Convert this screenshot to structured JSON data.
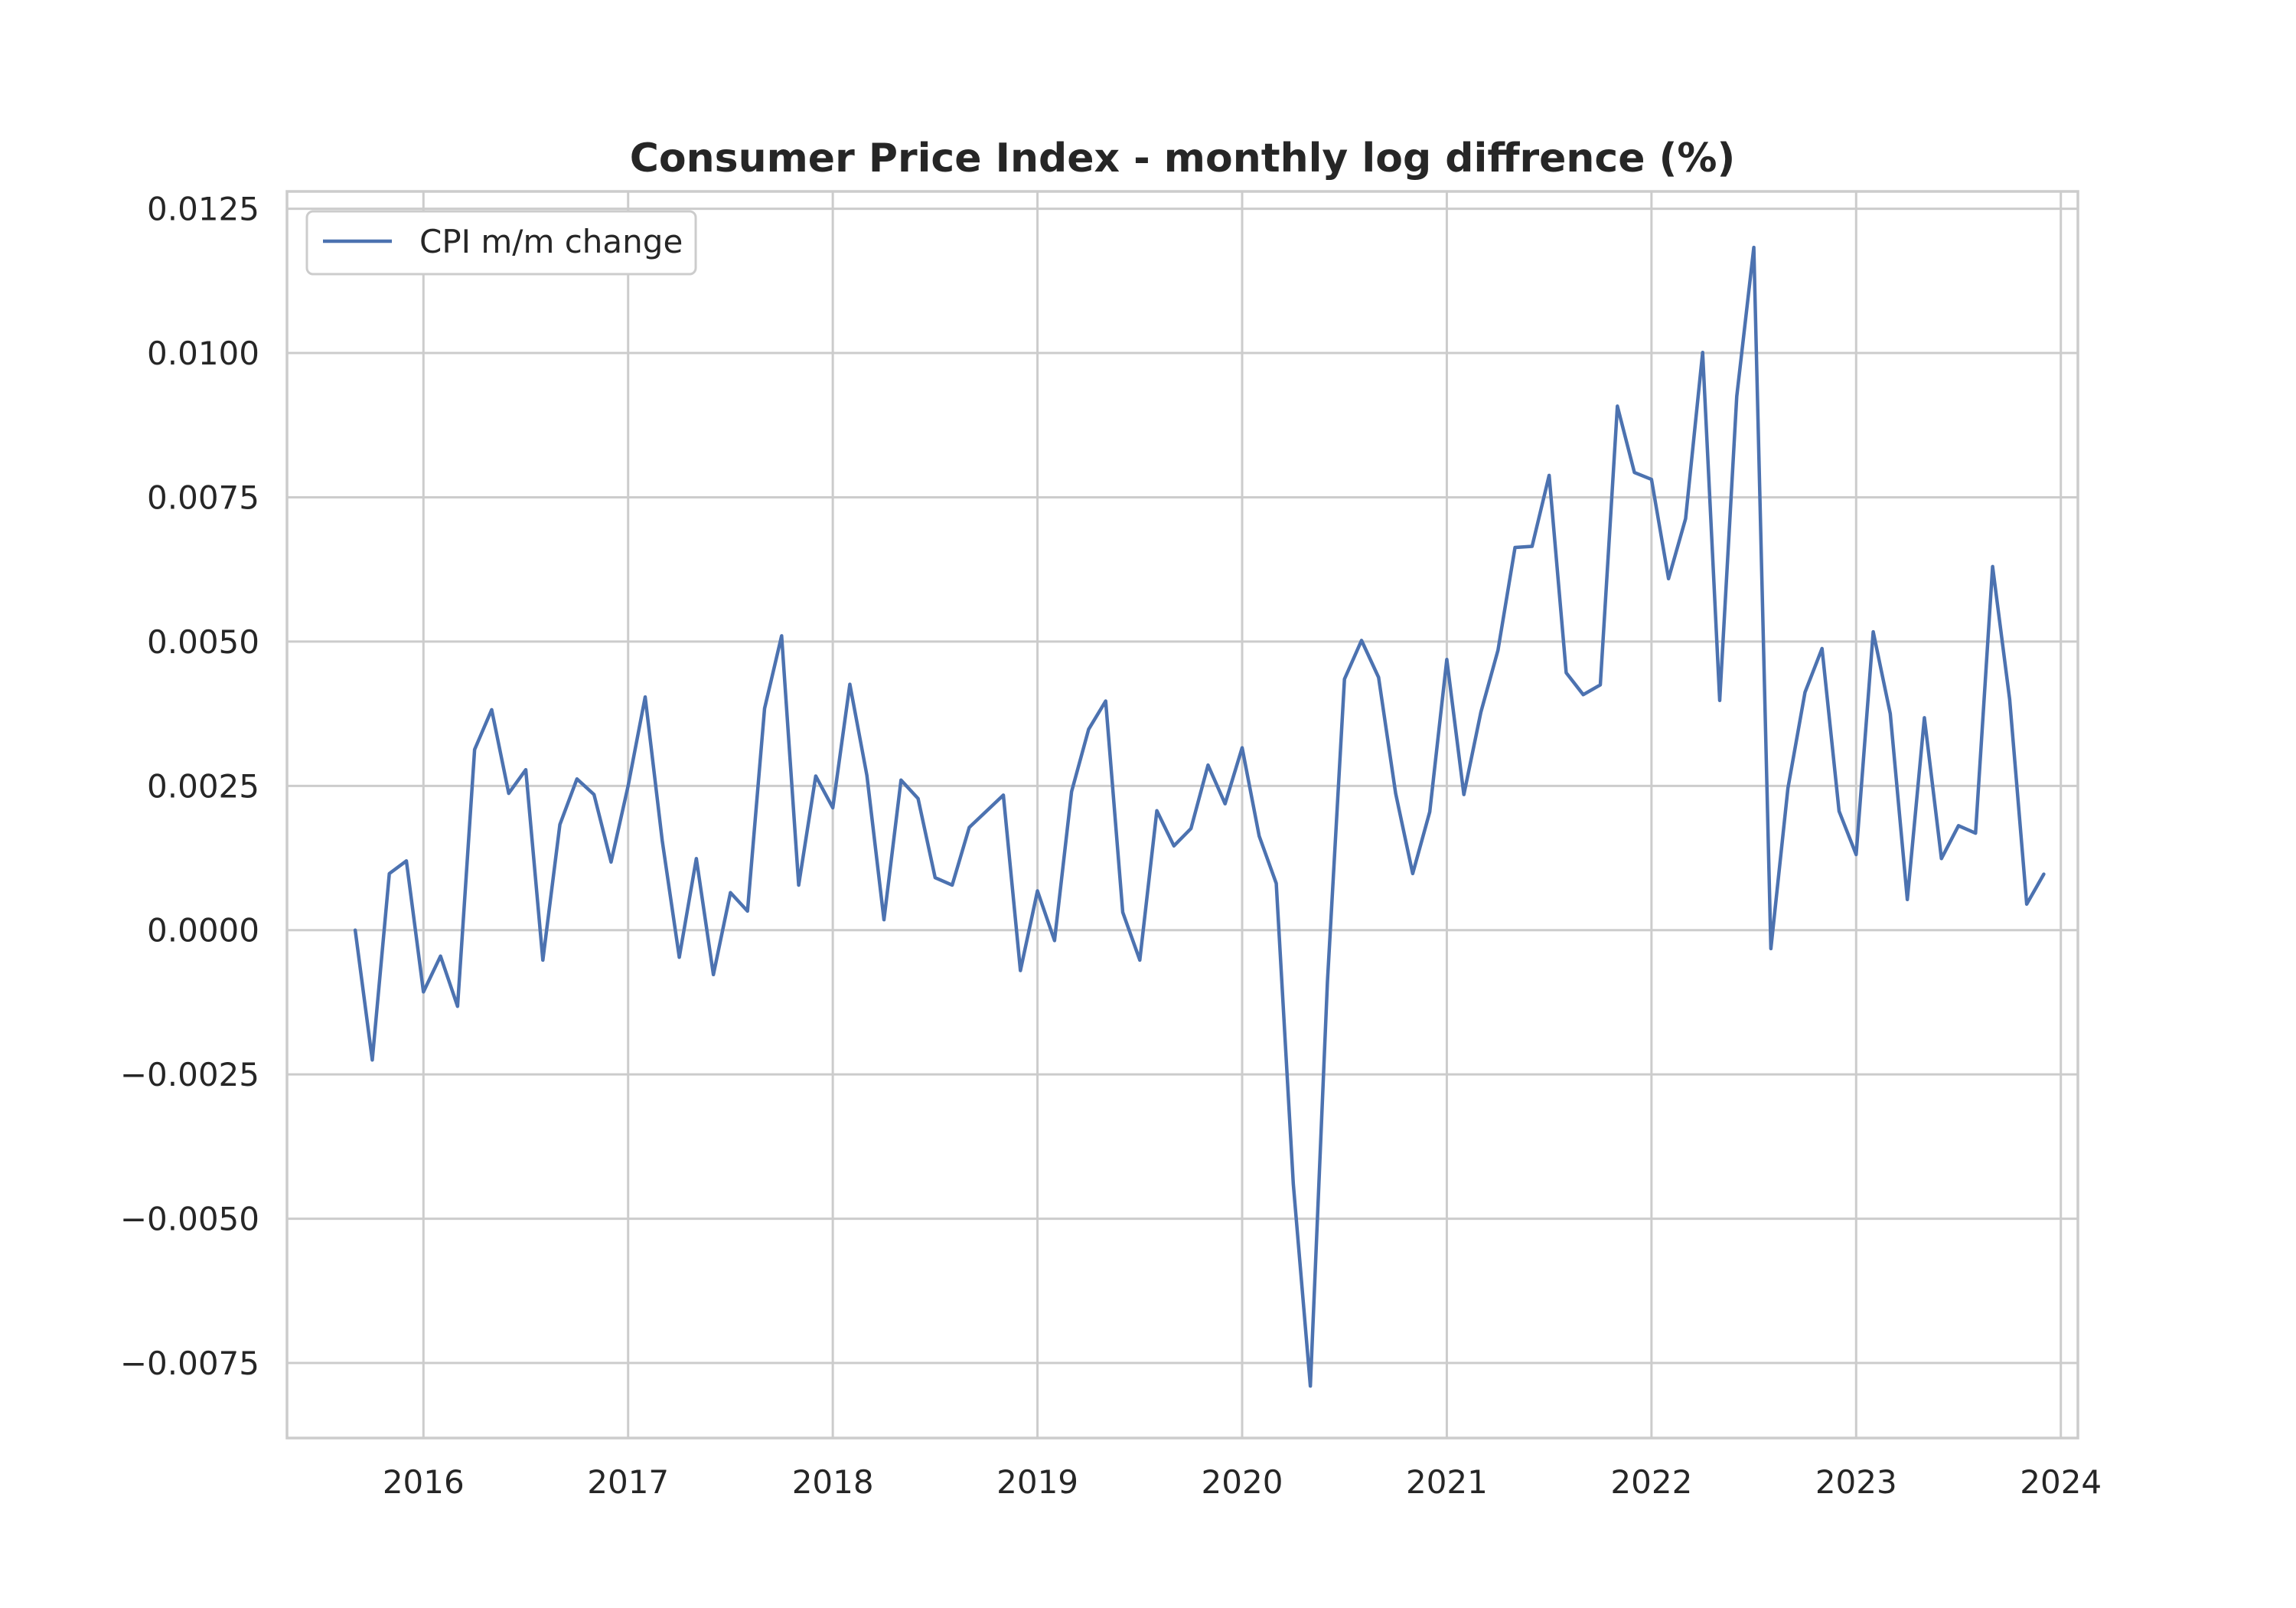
{
  "chart_data": {
    "type": "line",
    "title": "Consumer Price Index - monthly log diffrence (%)",
    "xlabel": "",
    "ylabel": "",
    "x_range": [
      "2015-05",
      "2024-02"
    ],
    "ylim": [
      -0.0088,
      0.0128
    ],
    "x_ticks": [
      {
        "date": "2016-01",
        "label": "2016"
      },
      {
        "date": "2017-01",
        "label": "2017"
      },
      {
        "date": "2018-01",
        "label": "2018"
      },
      {
        "date": "2019-01",
        "label": "2019"
      },
      {
        "date": "2020-01",
        "label": "2020"
      },
      {
        "date": "2021-01",
        "label": "2021"
      },
      {
        "date": "2022-01",
        "label": "2022"
      },
      {
        "date": "2023-01",
        "label": "2023"
      },
      {
        "date": "2024-01",
        "label": "2024"
      }
    ],
    "y_ticks": [
      {
        "value": 0.0125,
        "label": "0.0125"
      },
      {
        "value": 0.01,
        "label": "0.0100"
      },
      {
        "value": 0.0075,
        "label": "0.0075"
      },
      {
        "value": 0.005,
        "label": "0.0050"
      },
      {
        "value": 0.0025,
        "label": "0.0025"
      },
      {
        "value": 0.0,
        "label": "0.0000"
      },
      {
        "value": -0.0025,
        "label": "−0.0025"
      },
      {
        "value": -0.005,
        "label": "−0.0050"
      },
      {
        "value": -0.0075,
        "label": "−0.0075"
      }
    ],
    "grid": true,
    "legend": {
      "placement": "top-left",
      "entries": [
        "CPI m/m change"
      ]
    },
    "series": [
      {
        "name": "CPI m/m change",
        "color": "#4c72b0",
        "x": [
          "2015-09",
          "2015-10",
          "2015-11",
          "2015-12",
          "2016-01",
          "2016-02",
          "2016-03",
          "2016-04",
          "2016-05",
          "2016-06",
          "2016-07",
          "2016-08",
          "2016-09",
          "2016-10",
          "2016-11",
          "2016-12",
          "2017-01",
          "2017-02",
          "2017-03",
          "2017-04",
          "2017-05",
          "2017-06",
          "2017-07",
          "2017-08",
          "2017-09",
          "2017-10",
          "2017-11",
          "2017-12",
          "2018-01",
          "2018-02",
          "2018-03",
          "2018-04",
          "2018-05",
          "2018-06",
          "2018-07",
          "2018-08",
          "2018-09",
          "2018-10",
          "2018-11",
          "2018-12",
          "2019-01",
          "2019-02",
          "2019-03",
          "2019-04",
          "2019-05",
          "2019-06",
          "2019-07",
          "2019-08",
          "2019-09",
          "2019-10",
          "2019-11",
          "2019-12",
          "2020-01",
          "2020-02",
          "2020-03",
          "2020-04",
          "2020-05",
          "2020-06",
          "2020-07",
          "2020-08",
          "2020-09",
          "2020-10",
          "2020-11",
          "2020-12",
          "2021-01",
          "2021-02",
          "2021-03",
          "2021-04",
          "2021-05",
          "2021-06",
          "2021-07",
          "2021-08",
          "2021-09",
          "2021-10",
          "2021-11",
          "2021-12",
          "2022-01",
          "2022-02",
          "2022-03",
          "2022-04",
          "2022-05",
          "2022-06",
          "2022-07",
          "2022-08",
          "2022-09",
          "2022-10",
          "2022-11",
          "2022-12",
          "2023-01",
          "2023-02",
          "2023-03",
          "2023-04",
          "2023-05",
          "2023-06",
          "2023-07",
          "2023-08",
          "2023-09",
          "2023-10",
          "2023-11",
          "2023-12"
        ],
        "values": [
          0.0,
          -0.00225,
          0.00098,
          0.0012,
          -0.00107,
          -0.00045,
          -0.00132,
          0.00313,
          0.00382,
          0.00237,
          0.00278,
          -0.00052,
          0.00183,
          0.00262,
          0.00235,
          0.00118,
          0.0025,
          0.00404,
          0.00155,
          -0.00047,
          0.00124,
          -0.00077,
          0.00065,
          0.00033,
          0.00384,
          0.0051,
          0.00078,
          0.00267,
          0.00212,
          0.00426,
          0.00268,
          0.00018,
          0.0026,
          0.00228,
          0.00091,
          0.00078,
          0.00178,
          0.00206,
          0.00234,
          -0.0007,
          0.00068,
          -0.00018,
          0.0024,
          0.00348,
          0.00397,
          0.00031,
          -0.00052,
          0.00207,
          0.00146,
          0.00176,
          0.00286,
          0.00219,
          0.00316,
          0.00163,
          0.00081,
          -0.0044,
          -0.0079,
          -0.0009,
          0.00435,
          0.00502,
          0.00438,
          0.00237,
          0.00098,
          0.00205,
          0.00469,
          0.00235,
          0.00378,
          0.00485,
          0.00663,
          0.00665,
          0.00788,
          0.00446,
          0.00408,
          0.00425,
          0.00908,
          0.00793,
          0.00781,
          0.00609,
          0.00713,
          0.01001,
          0.00398,
          0.00925,
          0.01183,
          -0.00032,
          0.00246,
          0.00412,
          0.00488,
          0.00206,
          0.00131,
          0.00517,
          0.00375,
          0.00053,
          0.00368,
          0.00124,
          0.00181,
          0.00168,
          0.0063,
          0.004,
          0.00045,
          0.00097
        ]
      }
    ]
  }
}
